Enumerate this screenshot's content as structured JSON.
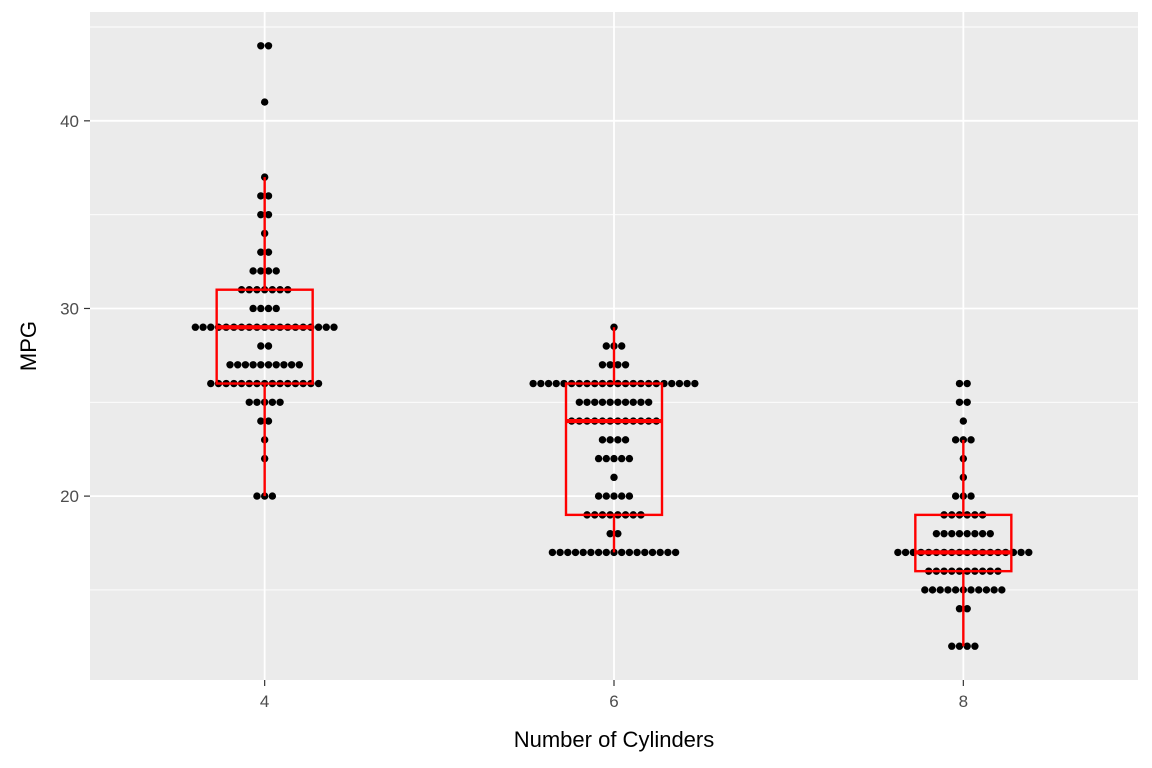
{
  "chart_data": {
    "type": "box",
    "title": "",
    "xlabel": "Number of Cylinders",
    "ylabel": "MPG",
    "x_ticks": [
      "4",
      "6",
      "8"
    ],
    "y_ticks": [
      "20",
      "30",
      "40"
    ],
    "xlim": [
      3,
      9
    ],
    "ylim": [
      10.2,
      45.8
    ],
    "grid": true,
    "background_color": "#ebebeb",
    "point_color": "#000000",
    "box_color": "#ff0000",
    "groups": [
      {
        "x": 4,
        "box": {
          "lower_whisker": 20,
          "q1": 26,
          "median": 29,
          "q3": 31,
          "upper_whisker": 37
        },
        "points": [
          {
            "y": 44,
            "count": 2
          },
          {
            "y": 41,
            "count": 1
          },
          {
            "y": 37,
            "count": 1
          },
          {
            "y": 36,
            "count": 2
          },
          {
            "y": 35,
            "count": 2
          },
          {
            "y": 34,
            "count": 1
          },
          {
            "y": 33,
            "count": 2
          },
          {
            "y": 32,
            "count": 4
          },
          {
            "y": 31,
            "count": 7
          },
          {
            "y": 30,
            "count": 4
          },
          {
            "y": 29,
            "count": 19
          },
          {
            "y": 28,
            "count": 2
          },
          {
            "y": 27,
            "count": 10
          },
          {
            "y": 26,
            "count": 15
          },
          {
            "y": 25,
            "count": 5
          },
          {
            "y": 24,
            "count": 2
          },
          {
            "y": 23,
            "count": 1
          },
          {
            "y": 22,
            "count": 1
          },
          {
            "y": 20,
            "count": 3
          }
        ]
      },
      {
        "x": 6,
        "box": {
          "lower_whisker": 17,
          "q1": 19,
          "median": 24,
          "q3": 26,
          "upper_whisker": 29
        },
        "points": [
          {
            "y": 29,
            "count": 1
          },
          {
            "y": 28,
            "count": 3
          },
          {
            "y": 27,
            "count": 4
          },
          {
            "y": 26,
            "count": 22
          },
          {
            "y": 25,
            "count": 10
          },
          {
            "y": 24,
            "count": 12
          },
          {
            "y": 23,
            "count": 4
          },
          {
            "y": 22,
            "count": 5
          },
          {
            "y": 21,
            "count": 1
          },
          {
            "y": 20,
            "count": 5
          },
          {
            "y": 19,
            "count": 8
          },
          {
            "y": 18,
            "count": 2
          },
          {
            "y": 17,
            "count": 17
          }
        ]
      },
      {
        "x": 8,
        "box": {
          "lower_whisker": 12,
          "q1": 16,
          "median": 17,
          "q3": 19,
          "upper_whisker": 23
        },
        "points": [
          {
            "y": 26,
            "count": 2
          },
          {
            "y": 25,
            "count": 2
          },
          {
            "y": 24,
            "count": 1
          },
          {
            "y": 23,
            "count": 3
          },
          {
            "y": 22,
            "count": 1
          },
          {
            "y": 21,
            "count": 1
          },
          {
            "y": 20,
            "count": 3
          },
          {
            "y": 19,
            "count": 6
          },
          {
            "y": 18,
            "count": 8
          },
          {
            "y": 17,
            "count": 18
          },
          {
            "y": 16,
            "count": 10
          },
          {
            "y": 15,
            "count": 11
          },
          {
            "y": 14,
            "count": 2
          },
          {
            "y": 12,
            "count": 4
          }
        ]
      }
    ]
  }
}
